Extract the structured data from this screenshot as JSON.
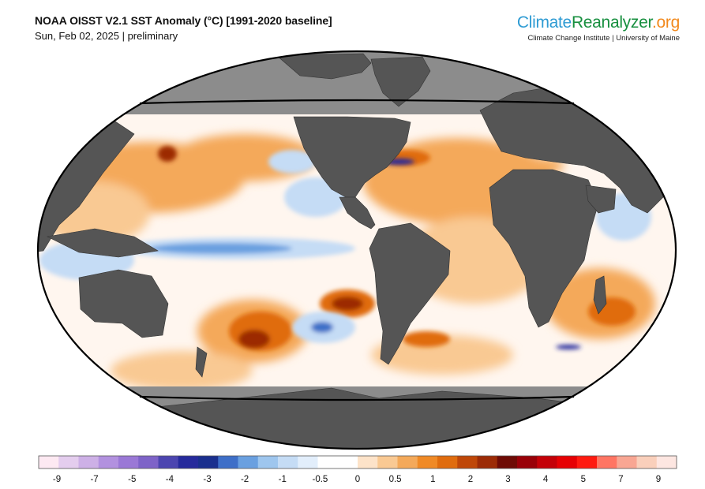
{
  "header": {
    "title": "NOAA OISST V2.1 SST Anomaly (°C) [1991-2020 baseline]",
    "subtitle": "Sun, Feb 02, 2025 | preliminary"
  },
  "brand": {
    "part1": "Climate",
    "part2": "Reanalyzer",
    "part3": ".org",
    "subtitle": "Climate Change Institute | University of Maine"
  },
  "colorbar": {
    "tick_labels": [
      "-9",
      "-7",
      "-5",
      "-4",
      "-3",
      "-2",
      "-1",
      "-0.5",
      "0",
      "0.5",
      "1",
      "2",
      "3",
      "4",
      "5",
      "7",
      "9"
    ],
    "colors": [
      "#fde9f2",
      "#e4cdee",
      "#cdb0e6",
      "#b291df",
      "#9a78d6",
      "#7e63c8",
      "#4c45b0",
      "#262a9c",
      "#1a2f8e",
      "#3e6fc8",
      "#6aa0e0",
      "#9ec6ee",
      "#c5dcf5",
      "#e2eefb",
      "#ffffff",
      "#ffffff",
      "#fde3c9",
      "#f9c993",
      "#f4a95a",
      "#f08a26",
      "#e06c0e",
      "#bf4708",
      "#9c2b06",
      "#6e0b05",
      "#990008",
      "#c40008",
      "#e60004",
      "#ff1a10",
      "#ff7563",
      "#f8a693",
      "#f9cfbb",
      "#fde6e1"
    ]
  },
  "map": {
    "colors": {
      "land": "#555555",
      "sea_ice": "#8c8c8c",
      "frame": "#000000",
      "neutral": "#fff6ef",
      "warm_light": "#f9c993",
      "warm": "#f4a95a",
      "warm_strong": "#e06c0e",
      "hot": "#9c2b06",
      "cool_light": "#c5dcf5",
      "cool": "#6aa0e0",
      "cool_strong": "#3e6fc8",
      "deep_cold": "#262a9c"
    }
  }
}
